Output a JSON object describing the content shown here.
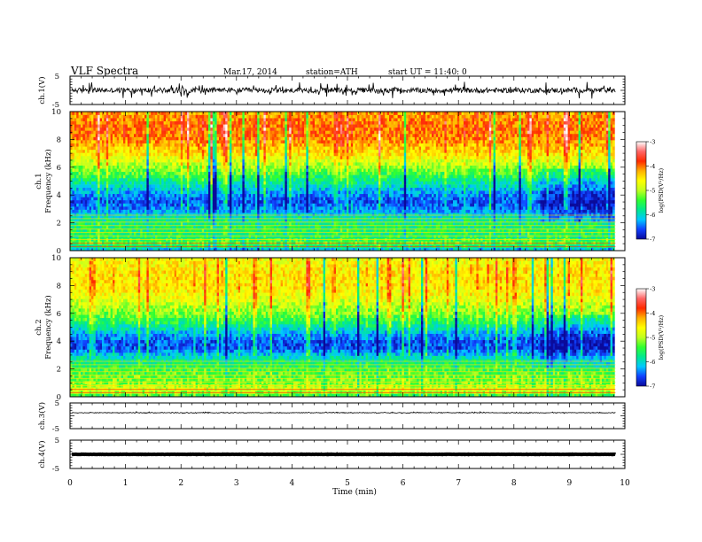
{
  "header": {
    "title": "VLF  Spectra",
    "date": "Mar.17, 2014",
    "station": "station=ATH",
    "start": "start  UT  =   11:40: 0"
  },
  "colors": {
    "colorbar_stops": [
      "#0a0a9a",
      "#1040ff",
      "#00c8ff",
      "#00e890",
      "#30ff30",
      "#c0ff20",
      "#ffff00",
      "#ffb000",
      "#ff2a00",
      "#ff6666",
      "#ffffff"
    ]
  },
  "chart_data": [
    {
      "type": "line",
      "name": "ch1-timeseries",
      "ylabel": "ch.1(V)",
      "ylim": [
        -5,
        5
      ],
      "yticks": [
        "5",
        "-5"
      ],
      "baseline": 0,
      "noise_amplitude": 0.9,
      "spike_amplitude": 2.3
    },
    {
      "type": "heatmap",
      "name": "ch1-spectrogram",
      "ylabel_channel": "ch.1",
      "ylabel": "Frequency  (kHz)",
      "ylim": [
        0,
        10
      ],
      "yticks": [
        "0",
        "2",
        "4",
        "6",
        "8",
        "10"
      ],
      "xlim": [
        0,
        9.83
      ],
      "colorbar": {
        "label": "log(PSD(V²/Hz)",
        "range": [
          -7,
          -3
        ],
        "ticks": [
          "-3",
          "-4",
          "-5",
          "-6",
          "-7"
        ]
      },
      "profile_khz": [
        0,
        0.5,
        1,
        1.5,
        2,
        2.5,
        3,
        3.5,
        4,
        4.5,
        5,
        5.5,
        6,
        6.5,
        7,
        7.5,
        8,
        8.5,
        9,
        9.5,
        10
      ],
      "profile_log_psd": [
        -6.3,
        -5.3,
        -5.6,
        -5.6,
        -5.7,
        -6.0,
        -6.4,
        -6.6,
        -6.4,
        -6.1,
        -5.8,
        -5.4,
        -5.1,
        -4.8,
        -4.5,
        -4.3,
        -4.1,
        -4.0,
        -4.0,
        -4.1,
        -4.2
      ]
    },
    {
      "type": "heatmap",
      "name": "ch2-spectrogram",
      "ylabel_channel": "ch.2",
      "ylabel": "Frequency  (kHz)",
      "ylim": [
        0,
        10
      ],
      "yticks": [
        "0",
        "2",
        "4",
        "6",
        "8",
        "10"
      ],
      "xlim": [
        0,
        9.83
      ],
      "colorbar": {
        "label": "log(PSD(V²/Hz)",
        "range": [
          -7,
          -3
        ],
        "ticks": [
          "-3",
          "-4",
          "-5",
          "-6",
          "-7"
        ]
      },
      "profile_khz": [
        0,
        0.5,
        1,
        1.5,
        2,
        2.5,
        3,
        3.5,
        4,
        4.5,
        5,
        5.5,
        6,
        6.5,
        7,
        7.5,
        8,
        8.5,
        9,
        9.5,
        10
      ],
      "profile_log_psd": [
        -5.6,
        -4.8,
        -5.2,
        -5.3,
        -5.5,
        -5.7,
        -6.1,
        -6.6,
        -6.6,
        -6.3,
        -5.9,
        -5.5,
        -5.2,
        -5.0,
        -4.8,
        -4.6,
        -4.5,
        -4.5,
        -4.5,
        -4.6,
        -4.7
      ]
    },
    {
      "type": "line",
      "name": "ch3-timeseries",
      "ylabel": "ch.3(V)",
      "ylim": [
        -5,
        5
      ],
      "yticks": [
        "5",
        "-5"
      ],
      "baseline": 1.2,
      "noise_amplitude": 0.12,
      "spike_amplitude": 0.3
    },
    {
      "type": "line",
      "name": "ch4-timeseries",
      "ylabel": "ch.4(V)",
      "ylim": [
        -5,
        5
      ],
      "yticks": [
        "5",
        "-5"
      ],
      "baseline": 0,
      "noise_amplitude": 0.05,
      "spike_amplitude": 0.05
    }
  ],
  "x_axis": {
    "label": "Time  (min)",
    "ticks": [
      "0",
      "1",
      "2",
      "3",
      "4",
      "5",
      "6",
      "7",
      "8",
      "9",
      "10"
    ],
    "range": [
      0,
      10
    ],
    "data_end": 9.83
  }
}
